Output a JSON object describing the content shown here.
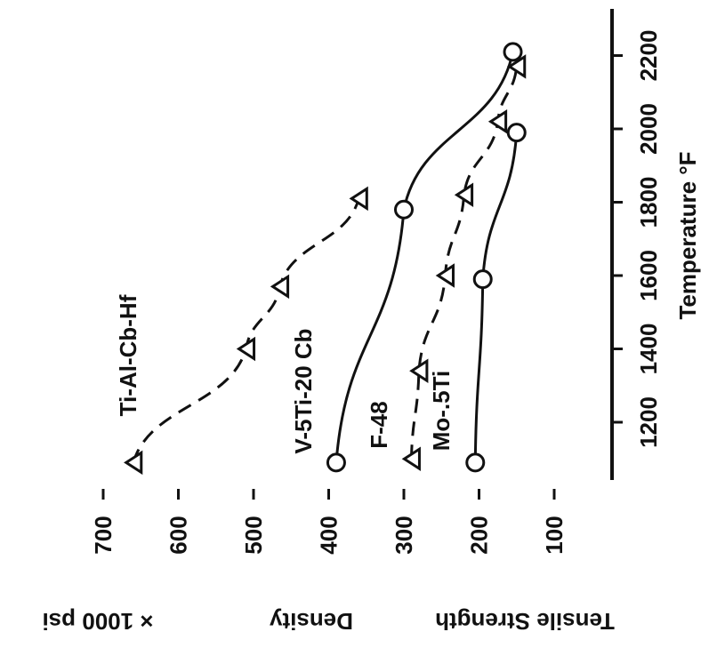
{
  "chart_data": {
    "type": "line",
    "xlabel": "Temperature °F",
    "ylabel_lines": [
      "Tensile Strength",
      "Density",
      "× 1000 psi"
    ],
    "x_ticks": [
      1200,
      1400,
      1600,
      1800,
      2000,
      2200
    ],
    "y_ticks": [
      100,
      200,
      300,
      400,
      500,
      600,
      700
    ],
    "xlim": [
      1100,
      2200
    ],
    "ylim": [
      100,
      700
    ],
    "series": [
      {
        "name": "Ti-Al-Cb-Hf",
        "marker": "triangle",
        "style": "dashed",
        "points": [
          [
            1090,
            660
          ],
          [
            1400,
            510
          ],
          [
            1570,
            465
          ],
          [
            1810,
            360
          ]
        ]
      },
      {
        "name": "V-5Ti-20 Cb",
        "marker": "circle",
        "style": "solid",
        "points": [
          [
            1090,
            390
          ],
          [
            1780,
            300
          ],
          [
            2210,
            155
          ]
        ]
      },
      {
        "name": "F-48",
        "marker": "triangle",
        "style": "dashed",
        "points": [
          [
            1100,
            290
          ],
          [
            1340,
            280
          ],
          [
            1600,
            245
          ],
          [
            1820,
            220
          ],
          [
            2020,
            175
          ],
          [
            2170,
            150
          ]
        ]
      },
      {
        "name": "Mo-.5Ti",
        "marker": "circle",
        "style": "solid",
        "points": [
          [
            1090,
            205
          ],
          [
            1590,
            195
          ],
          [
            1990,
            150
          ]
        ]
      }
    ]
  }
}
